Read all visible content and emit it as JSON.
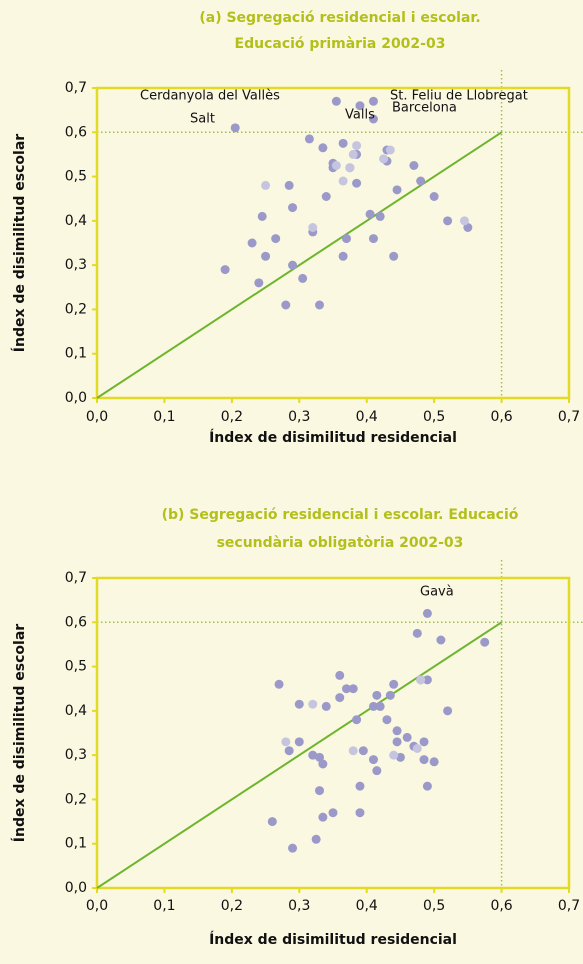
{
  "chart_data": [
    {
      "type": "scatter",
      "title": [
        "(a) Segregació residencial i escolar.",
        "Educació primària 2002-03"
      ],
      "x_label": "Índex de disimilitud residencial",
      "y_label": "Índex de disimilitud escolar",
      "xlim": [
        0,
        0.7
      ],
      "ylim": [
        0,
        0.7
      ],
      "xticks": [
        {
          "value": 0,
          "label": "0,0"
        },
        {
          "value": 0.1,
          "label": "0,1"
        },
        {
          "value": 0.2,
          "label": "0,2"
        },
        {
          "value": 0.3,
          "label": "0,3"
        },
        {
          "value": 0.4,
          "label": "0,4"
        },
        {
          "value": 0.5,
          "label": "0,5"
        },
        {
          "value": 0.6,
          "label": "0,6"
        },
        {
          "value": 0.7,
          "label": "0,7"
        }
      ],
      "yticks": [
        {
          "value": 0,
          "label": "0,0"
        },
        {
          "value": 0.1,
          "label": "0,1"
        },
        {
          "value": 0.2,
          "label": "0,2"
        },
        {
          "value": 0.3,
          "label": "0,3"
        },
        {
          "value": 0.4,
          "label": "0,4"
        },
        {
          "value": 0.5,
          "label": "0,5"
        },
        {
          "value": 0.6,
          "label": "0,6"
        },
        {
          "value": 0.7,
          "label": "0,7"
        }
      ],
      "diagonal_end": 0.6,
      "reference_lines": {
        "x": 0.6,
        "y": 0.6
      },
      "annotations": [
        "Cerdanyola del Vallès",
        "Salt",
        "Valls",
        "St. Feliu de Llobregat",
        "Barcelona"
      ],
      "series": [
        {
          "color": "#9b99c9",
          "x": [
            0.19,
            0.205,
            0.23,
            0.24,
            0.245,
            0.25,
            0.265,
            0.28,
            0.285,
            0.29,
            0.29,
            0.305,
            0.315,
            0.32,
            0.33,
            0.335,
            0.34,
            0.35,
            0.35,
            0.355,
            0.365,
            0.365,
            0.37,
            0.375,
            0.385,
            0.385,
            0.39,
            0.405,
            0.41,
            0.41,
            0.41,
            0.42,
            0.43,
            0.43,
            0.44,
            0.445,
            0.47,
            0.48,
            0.5,
            0.52,
            0.55
          ],
          "y": [
            0.29,
            0.61,
            0.35,
            0.26,
            0.41,
            0.32,
            0.36,
            0.21,
            0.48,
            0.43,
            0.3,
            0.27,
            0.585,
            0.375,
            0.21,
            0.565,
            0.455,
            0.53,
            0.52,
            0.67,
            0.575,
            0.32,
            0.36,
            0.52,
            0.485,
            0.55,
            0.66,
            0.415,
            0.63,
            0.67,
            0.36,
            0.41,
            0.56,
            0.535,
            0.32,
            0.47,
            0.525,
            0.49,
            0.455,
            0.4,
            0.385
          ]
        },
        {
          "color": "#c6c5df",
          "x": [
            0.25,
            0.32,
            0.355,
            0.365,
            0.375,
            0.38,
            0.385,
            0.425,
            0.435,
            0.545
          ],
          "y": [
            0.48,
            0.385,
            0.525,
            0.49,
            0.52,
            0.55,
            0.57,
            0.54,
            0.56,
            0.4
          ]
        }
      ]
    },
    {
      "type": "scatter",
      "title": [
        "(b) Segregació residencial i escolar. Educació",
        "secundària obligatòria 2002-03"
      ],
      "x_label": "Índex de disimilitud residencial",
      "y_label": "Índex de disimilitud escolar",
      "xlim": [
        0,
        0.7
      ],
      "ylim": [
        0,
        0.7
      ],
      "xticks": [
        {
          "value": 0,
          "label": "0,0"
        },
        {
          "value": 0.1,
          "label": "0,1"
        },
        {
          "value": 0.2,
          "label": "0,2"
        },
        {
          "value": 0.3,
          "label": "0,3"
        },
        {
          "value": 0.4,
          "label": "0,4"
        },
        {
          "value": 0.5,
          "label": "0,5"
        },
        {
          "value": 0.6,
          "label": "0,6"
        },
        {
          "value": 0.7,
          "label": "0,7"
        }
      ],
      "yticks": [
        {
          "value": 0,
          "label": "0,0"
        },
        {
          "value": 0.1,
          "label": "0,1"
        },
        {
          "value": 0.2,
          "label": "0,2"
        },
        {
          "value": 0.3,
          "label": "0,3"
        },
        {
          "value": 0.4,
          "label": "0,4"
        },
        {
          "value": 0.5,
          "label": "0,5"
        },
        {
          "value": 0.6,
          "label": "0,6"
        },
        {
          "value": 0.7,
          "label": "0,7"
        }
      ],
      "diagonal_end": 0.6,
      "reference_lines": {
        "x": 0.6,
        "y": 0.6
      },
      "annotations": [
        "Gavà"
      ],
      "series": [
        {
          "color": "#9b99c9",
          "x": [
            0.49,
            0.26,
            0.27,
            0.285,
            0.29,
            0.3,
            0.3,
            0.32,
            0.325,
            0.33,
            0.33,
            0.335,
            0.335,
            0.34,
            0.35,
            0.36,
            0.36,
            0.37,
            0.38,
            0.385,
            0.39,
            0.39,
            0.395,
            0.41,
            0.41,
            0.415,
            0.415,
            0.42,
            0.43,
            0.435,
            0.44,
            0.445,
            0.445,
            0.45,
            0.46,
            0.47,
            0.475,
            0.48,
            0.485,
            0.485,
            0.49,
            0.49,
            0.5,
            0.51,
            0.52,
            0.575
          ],
          "y": [
            0.62,
            0.15,
            0.46,
            0.31,
            0.09,
            0.33,
            0.415,
            0.3,
            0.11,
            0.22,
            0.295,
            0.28,
            0.16,
            0.41,
            0.17,
            0.43,
            0.48,
            0.45,
            0.45,
            0.38,
            0.23,
            0.17,
            0.31,
            0.41,
            0.29,
            0.265,
            0.435,
            0.41,
            0.38,
            0.435,
            0.46,
            0.355,
            0.33,
            0.295,
            0.34,
            0.32,
            0.575,
            0.47,
            0.33,
            0.29,
            0.47,
            0.23,
            0.285,
            0.56,
            0.4,
            0.555
          ]
        },
        {
          "color": "#c6c5df",
          "x": [
            0.28,
            0.32,
            0.38,
            0.44,
            0.475,
            0.48
          ],
          "y": [
            0.33,
            0.415,
            0.31,
            0.3,
            0.315,
            0.47
          ]
        }
      ]
    }
  ]
}
